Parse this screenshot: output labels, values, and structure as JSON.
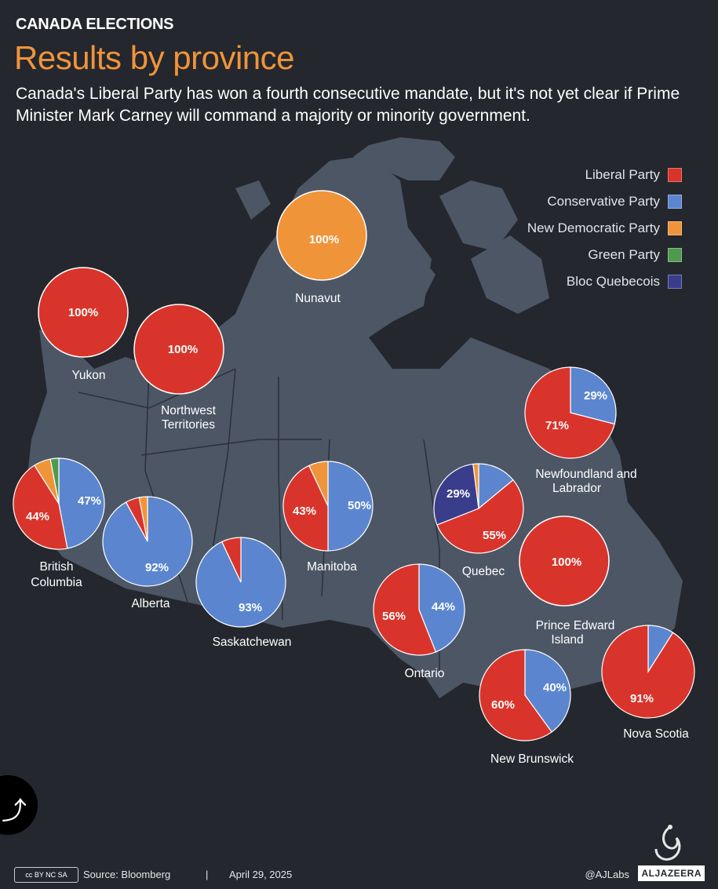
{
  "header": {
    "kicker": "CANADA ELECTIONS",
    "title": "Results by province",
    "subtitle": "Canada's Liberal Party has won a fourth consecutive mandate, but it's not yet clear if Prime Minister Mark Carney will command a majority or minority government."
  },
  "legend": [
    {
      "label": "Liberal Party",
      "color": "#d9342b"
    },
    {
      "label": "Conservative Party",
      "color": "#5b86cf"
    },
    {
      "label": "New Democratic Party",
      "color": "#f0943a"
    },
    {
      "label": "Green Party",
      "color": "#4e9a4f"
    },
    {
      "label": "Bloc Quebecois",
      "color": "#3a3d8c"
    }
  ],
  "chart_data": {
    "type": "pie",
    "title": "Results by province",
    "parties": [
      "Liberal Party",
      "Conservative Party",
      "New Democratic Party",
      "Green Party",
      "Bloc Quebecois"
    ],
    "provinces": [
      {
        "name": "Yukon",
        "shares": [
          100,
          0,
          0,
          0,
          0
        ],
        "labels": [
          "100%"
        ]
      },
      {
        "name": "Northwest Territories",
        "shares": [
          100,
          0,
          0,
          0,
          0
        ],
        "labels": [
          "100%"
        ]
      },
      {
        "name": "Nunavut",
        "shares": [
          0,
          0,
          100,
          0,
          0
        ],
        "labels": [
          "100%"
        ]
      },
      {
        "name": "British Columbia",
        "shares": [
          44,
          47,
          6,
          3,
          0
        ],
        "labels": [
          "44%",
          "47%"
        ]
      },
      {
        "name": "Alberta",
        "shares": [
          5,
          92,
          3,
          0,
          0
        ],
        "labels": [
          "92%"
        ]
      },
      {
        "name": "Saskatchewan",
        "shares": [
          7,
          93,
          0,
          0,
          0
        ],
        "labels": [
          "93%"
        ]
      },
      {
        "name": "Manitoba",
        "shares": [
          43,
          50,
          7,
          0,
          0
        ],
        "labels": [
          "43%",
          "50%"
        ]
      },
      {
        "name": "Ontario",
        "shares": [
          56,
          44,
          0,
          0,
          0
        ],
        "labels": [
          "56%",
          "44%"
        ]
      },
      {
        "name": "Quebec",
        "shares": [
          55,
          14,
          2,
          0,
          29
        ],
        "labels": [
          "55%",
          "29%"
        ]
      },
      {
        "name": "Newfoundland and Labrador",
        "shares": [
          71,
          29,
          0,
          0,
          0
        ],
        "labels": [
          "71%",
          "29%"
        ]
      },
      {
        "name": "Prince Edward Island",
        "shares": [
          100,
          0,
          0,
          0,
          0
        ],
        "labels": [
          "100%"
        ]
      },
      {
        "name": "New Brunswick",
        "shares": [
          60,
          40,
          0,
          0,
          0
        ],
        "labels": [
          "60%",
          "40%"
        ]
      },
      {
        "name": "Nova Scotia",
        "shares": [
          91,
          9,
          0,
          0,
          0
        ],
        "labels": [
          "91%"
        ]
      }
    ]
  },
  "footer": {
    "license": "cc BY NC SA",
    "source": "Source:  Bloomberg",
    "separator": "|",
    "date": "April 29, 2025",
    "handle": "@AJLabs",
    "brand": "ALJAZEERA"
  }
}
